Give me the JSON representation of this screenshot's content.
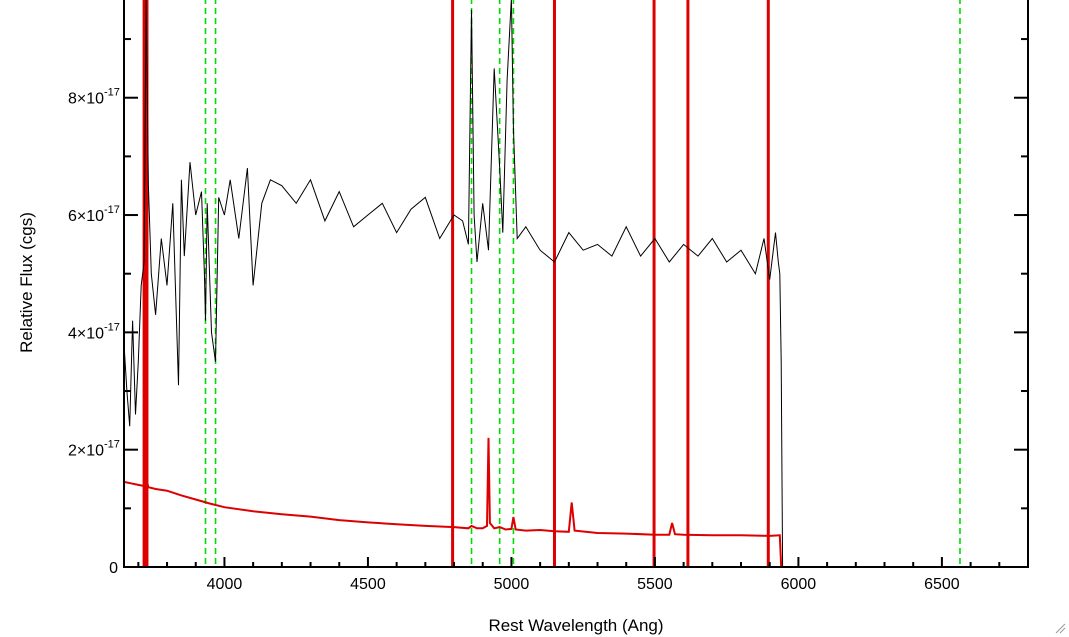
{
  "chart_data": {
    "type": "line",
    "title": "",
    "xlabel": "Rest Wavelength (Ang)",
    "ylabel": "Relative Flux (cgs)",
    "xlim": [
      3650,
      6800
    ],
    "ylim": [
      0,
      9.7e-17
    ],
    "x_ticks": [
      {
        "value": 4000,
        "label": "4000"
      },
      {
        "value": 4500,
        "label": "4500"
      },
      {
        "value": 5000,
        "label": "5000"
      },
      {
        "value": 5500,
        "label": "5500"
      },
      {
        "value": 6000,
        "label": "6000"
      },
      {
        "value": 6500,
        "label": "6500"
      }
    ],
    "y_ticks": [
      {
        "value": 0,
        "label": "0",
        "exp": ""
      },
      {
        "value": 2e-17,
        "label": "2×10",
        "exp": "-17"
      },
      {
        "value": 4e-17,
        "label": "4×10",
        "exp": "-17"
      },
      {
        "value": 6e-17,
        "label": "6×10",
        "exp": "-17"
      },
      {
        "value": 8e-17,
        "label": "8×10",
        "exp": "-17"
      }
    ],
    "reference_lines": {
      "style": "dashed",
      "color": "#00dd00",
      "x": [
        3727,
        3934,
        3969,
        4861,
        4959,
        5007,
        6563
      ]
    },
    "series": [
      {
        "color": "#000000",
        "x": [
          3650,
          3660,
          3670,
          3680,
          3690,
          3700,
          3710,
          3720,
          3727,
          3735,
          3745,
          3760,
          3780,
          3800,
          3820,
          3840,
          3850,
          3860,
          3880,
          3900,
          3920,
          3930,
          3934,
          3940,
          3955,
          3969,
          3980,
          4000,
          4020,
          4050,
          4080,
          4100,
          4130,
          4160,
          4200,
          4250,
          4300,
          4350,
          4400,
          4450,
          4500,
          4550,
          4600,
          4650,
          4700,
          4750,
          4800,
          4830,
          4850,
          4861,
          4870,
          4880,
          4900,
          4920,
          4940,
          4959,
          4970,
          4985,
          5000,
          5007,
          5020,
          5050,
          5100,
          5150,
          5200,
          5250,
          5300,
          5350,
          5400,
          5450,
          5500,
          5550,
          5600,
          5650,
          5700,
          5750,
          5800,
          5850,
          5880,
          5900,
          5920,
          5930,
          5935,
          5940,
          5945
        ],
        "values": [
          3.8e-17,
          3e-17,
          2.4e-17,
          4.2e-17,
          2.6e-17,
          3.5e-17,
          4.8e-17,
          5.2e-17,
          9.7e-17,
          6.5e-17,
          5e-17,
          4.3e-17,
          5.6e-17,
          4.8e-17,
          6.2e-17,
          3.1e-17,
          6.6e-17,
          5.3e-17,
          6.9e-17,
          6e-17,
          6.4e-17,
          5e-17,
          4.2e-17,
          6.2e-17,
          4e-17,
          3.5e-17,
          6.3e-17,
          6e-17,
          6.6e-17,
          5.6e-17,
          6.8e-17,
          4.8e-17,
          6.2e-17,
          6.6e-17,
          6.5e-17,
          6.2e-17,
          6.6e-17,
          5.9e-17,
          6.4e-17,
          5.8e-17,
          6e-17,
          6.2e-17,
          5.7e-17,
          6.1e-17,
          6.3e-17,
          5.6e-17,
          6e-17,
          5.9e-17,
          5.5e-17,
          9.5e-17,
          6e-17,
          5.2e-17,
          6.2e-17,
          5.4e-17,
          8.5e-17,
          6.8e-17,
          5.7e-17,
          8.3e-17,
          9.7e-17,
          7.5e-17,
          5.6e-17,
          5.8e-17,
          5.4e-17,
          5.2e-17,
          5.7e-17,
          5.4e-17,
          5.5e-17,
          5.3e-17,
          5.8e-17,
          5.3e-17,
          5.6e-17,
          5.2e-17,
          5.5e-17,
          5.3e-17,
          5.6e-17,
          5.2e-17,
          5.4e-17,
          5e-17,
          5.6e-17,
          4.9e-17,
          5.7e-17,
          5.2e-17,
          5e-17,
          3.5e-17,
          0
        ]
      },
      {
        "color": "#dd0000",
        "x": [
          3650,
          3680,
          3700,
          3720,
          3727,
          3735,
          3760,
          3800,
          3850,
          3900,
          3950,
          4000,
          4100,
          4200,
          4300,
          4400,
          4500,
          4600,
          4700,
          4800,
          4850,
          4861,
          4880,
          4900,
          4915,
          4920,
          4925,
          4940,
          4959,
          4980,
          5000,
          5007,
          5015,
          5050,
          5100,
          5150,
          5200,
          5210,
          5220,
          5300,
          5400,
          5500,
          5550,
          5560,
          5570,
          5600,
          5700,
          5800,
          5900,
          5935,
          5940,
          5945,
          6000,
          6500,
          6800
        ],
        "values": [
          1.45e-17,
          1.42e-17,
          1.4e-17,
          1.38e-17,
          1.5e-17,
          1.36e-17,
          1.33e-17,
          1.3e-17,
          1.22e-17,
          1.15e-17,
          1.08e-17,
          1.02e-17,
          9.5e-18,
          9e-18,
          8.6e-18,
          8e-18,
          7.6e-18,
          7.3e-18,
          7e-18,
          6.8e-18,
          6.6e-18,
          7e-18,
          6.6e-18,
          6.6e-18,
          7e-18,
          2.2e-17,
          7.5e-18,
          6.6e-18,
          6.8e-18,
          6.4e-18,
          6.5e-18,
          8.5e-18,
          6.4e-18,
          6.2e-18,
          6.3e-18,
          6.1e-18,
          6e-18,
          1.1e-17,
          6.2e-18,
          5.8e-18,
          5.7e-18,
          5.5e-18,
          5.5e-18,
          7.5e-18,
          5.6e-18,
          5.5e-18,
          5.4e-18,
          5.4e-18,
          5.3e-18,
          5.4e-18,
          0,
          0,
          0,
          0,
          0
        ]
      }
    ],
    "vertical_bands": {
      "color": "#dd0000",
      "x": [
        3720,
        3730,
        4795,
        5150,
        5497,
        5615,
        5895
      ]
    }
  }
}
